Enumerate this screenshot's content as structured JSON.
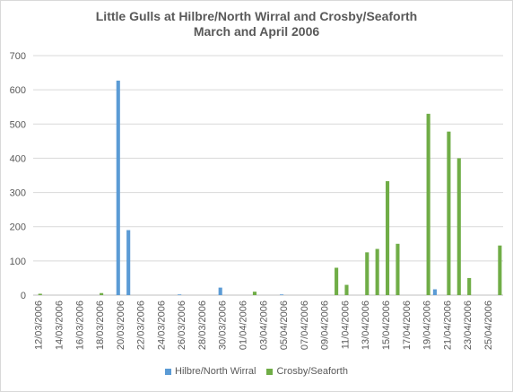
{
  "chart_data": {
    "type": "bar",
    "title": [
      "Little Gulls at Hilbre/North Wirral and Crosby/Seaforth",
      "March and April 2006"
    ],
    "xlabel": "",
    "ylabel": "",
    "ylim": [
      0,
      700
    ],
    "yticks": [
      "0",
      "100",
      "200",
      "300",
      "400",
      "500",
      "600",
      "700"
    ],
    "grid": true,
    "legend_position": "bottom",
    "x": [
      "12/03/2006",
      "13/03/2006",
      "14/03/2006",
      "15/03/2006",
      "16/03/2006",
      "17/03/2006",
      "18/03/2006",
      "19/03/2006",
      "20/03/2006",
      "21/03/2006",
      "22/03/2006",
      "23/03/2006",
      "24/03/2006",
      "25/03/2006",
      "26/03/2006",
      "27/03/2006",
      "28/03/2006",
      "29/03/2006",
      "30/03/2006",
      "31/03/2006",
      "01/04/2006",
      "02/04/2006",
      "03/04/2006",
      "04/04/2006",
      "05/04/2006",
      "06/04/2006",
      "07/04/2006",
      "08/04/2006",
      "09/04/2006",
      "10/04/2006",
      "11/04/2006",
      "12/04/2006",
      "13/04/2006",
      "14/04/2006",
      "15/04/2006",
      "16/04/2006",
      "17/04/2006",
      "18/04/2006",
      "19/04/2006",
      "20/04/2006",
      "21/04/2006",
      "22/04/2006",
      "23/04/2006",
      "24/04/2006",
      "25/04/2006",
      "26/04/2006"
    ],
    "x_tick_labels": [
      "12/03/2006",
      "14/03/2006",
      "16/03/2006",
      "18/03/2006",
      "20/03/2006",
      "22/03/2006",
      "24/03/2006",
      "26/03/2006",
      "28/03/2006",
      "30/03/2006",
      "01/04/2006",
      "03/04/2006",
      "05/04/2006",
      "07/04/2006",
      "09/04/2006",
      "11/04/2006",
      "13/04/2006",
      "15/04/2006",
      "17/04/2006",
      "19/04/2006",
      "21/04/2006",
      "23/04/2006",
      "25/04/2006"
    ],
    "series": [
      {
        "name": "Hilbre/North Wirral",
        "color": "#5b9bd5",
        "values": [
          0,
          0,
          0,
          0,
          0,
          0,
          0,
          0,
          627,
          190,
          0,
          0,
          0,
          0,
          2,
          0,
          0,
          0,
          22,
          0,
          0,
          0,
          0,
          0,
          2,
          0,
          0,
          0,
          0,
          0,
          0,
          0,
          0,
          0,
          0,
          0,
          0,
          0,
          0,
          17,
          0,
          0,
          0,
          0,
          0,
          0
        ]
      },
      {
        "name": "Crosby/Seaforth",
        "color": "#70ad47",
        "values": [
          4,
          0,
          0,
          0,
          0,
          0,
          6,
          0,
          0,
          0,
          0,
          0,
          0,
          0,
          0,
          0,
          0,
          0,
          0,
          0,
          0,
          10,
          0,
          0,
          0,
          0,
          0,
          0,
          0,
          80,
          30,
          0,
          125,
          135,
          333,
          150,
          0,
          0,
          530,
          0,
          478,
          400,
          50,
          0,
          0,
          145
        ]
      }
    ]
  }
}
